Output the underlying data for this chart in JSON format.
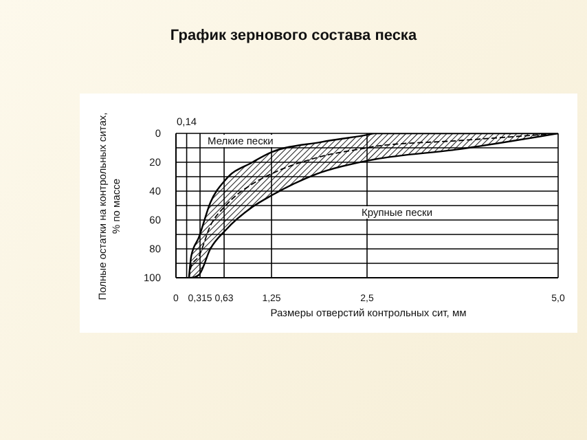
{
  "chart_data": {
    "type": "line",
    "title": "График зернового состава песка",
    "xlabel": "Размеры отверстий контрольных сит, мм",
    "ylabel": "Полные остатки на контрольных ситах, % по массе",
    "xlim": [
      0,
      5
    ],
    "xticks": [
      0,
      {
        "value": 0.315,
        "label": "0,315"
      },
      {
        "value": 0.63,
        "label": "0,63"
      },
      {
        "value": 1.25,
        "label": "1,25"
      },
      {
        "value": 2.5,
        "label": "2,5"
      },
      {
        "value": 5,
        "label": "5,0"
      }
    ],
    "ylim": [
      100,
      0
    ],
    "yticks": [
      0,
      {
        "value": 10,
        "label": null
      },
      20,
      {
        "value": 30,
        "label": null
      },
      40,
      {
        "value": 50,
        "label": null
      },
      60,
      {
        "value": 70,
        "label": null
      },
      80,
      {
        "value": 90,
        "label": null
      },
      100
    ],
    "grid": true,
    "line_style": "dashed",
    "marker": "none",
    "ref_lines": [
      {
        "axis": "x",
        "value": 0.14,
        "label": "0,14"
      }
    ],
    "series": [
      {
        "color": "#000000",
        "x": [
          0.17,
          0.2,
          0.3,
          0.45,
          0.65,
          1.0,
          1.25,
          1.9,
          2.5,
          2.6,
          3.7,
          5.0
        ],
        "values": [
          100,
          92,
          85,
          64,
          50,
          35,
          28,
          16,
          10,
          9,
          5,
          0
        ],
        "lower": [
          100,
          85,
          72,
          48,
          32,
          20,
          13,
          6,
          1,
          0,
          0,
          0
        ],
        "upper": [
          100,
          100,
          98,
          80,
          67,
          51,
          43,
          27,
          19,
          18,
          11,
          0
        ]
      }
    ],
    "annotations": [
      "Мелкие пески",
      "Крупные пески"
    ]
  }
}
